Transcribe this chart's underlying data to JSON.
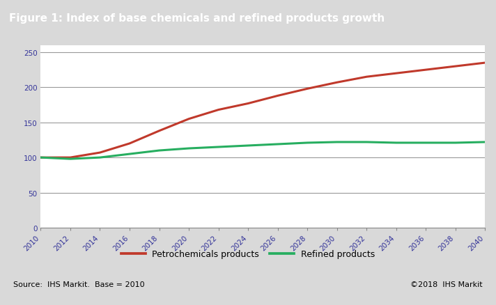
{
  "title": "Figure 1: Index of base chemicals and refined products growth",
  "title_bg_color": "#787878",
  "title_text_color": "#ffffff",
  "source_text": "Source:  IHS Markit.  Base = 2010",
  "copyright_text": "©2018  IHS Markit",
  "ylim": [
    0,
    260
  ],
  "yticks": [
    0,
    50,
    100,
    150,
    200,
    250
  ],
  "years": [
    2010,
    2012,
    2014,
    2016,
    2018,
    2020,
    2022,
    2024,
    2026,
    2028,
    2030,
    2032,
    2034,
    2036,
    2038,
    2040
  ],
  "petrochem": [
    100,
    100,
    107,
    120,
    138,
    155,
    168,
    177,
    188,
    198,
    207,
    215,
    220,
    225,
    230,
    235
  ],
  "refined": [
    100,
    98,
    100,
    105,
    110,
    113,
    115,
    117,
    119,
    121,
    122,
    122,
    121,
    121,
    121,
    122
  ],
  "petrochem_color": "#c0392b",
  "refined_color": "#27ae60",
  "grid_color": "#999999",
  "plot_bg_color": "#ffffff",
  "outer_bg_color": "#d9d9d9",
  "line_width": 2.2,
  "legend_petrochem": "Petrochemicals products",
  "legend_refined": "Refined products",
  "xtick_labels": [
    "2010",
    "2012",
    "2014",
    "2016",
    "2018",
    "2020",
    "2022",
    "2024",
    "2026",
    "2028",
    "2030",
    "2032",
    "2034",
    "2036",
    "2038",
    "2040"
  ]
}
